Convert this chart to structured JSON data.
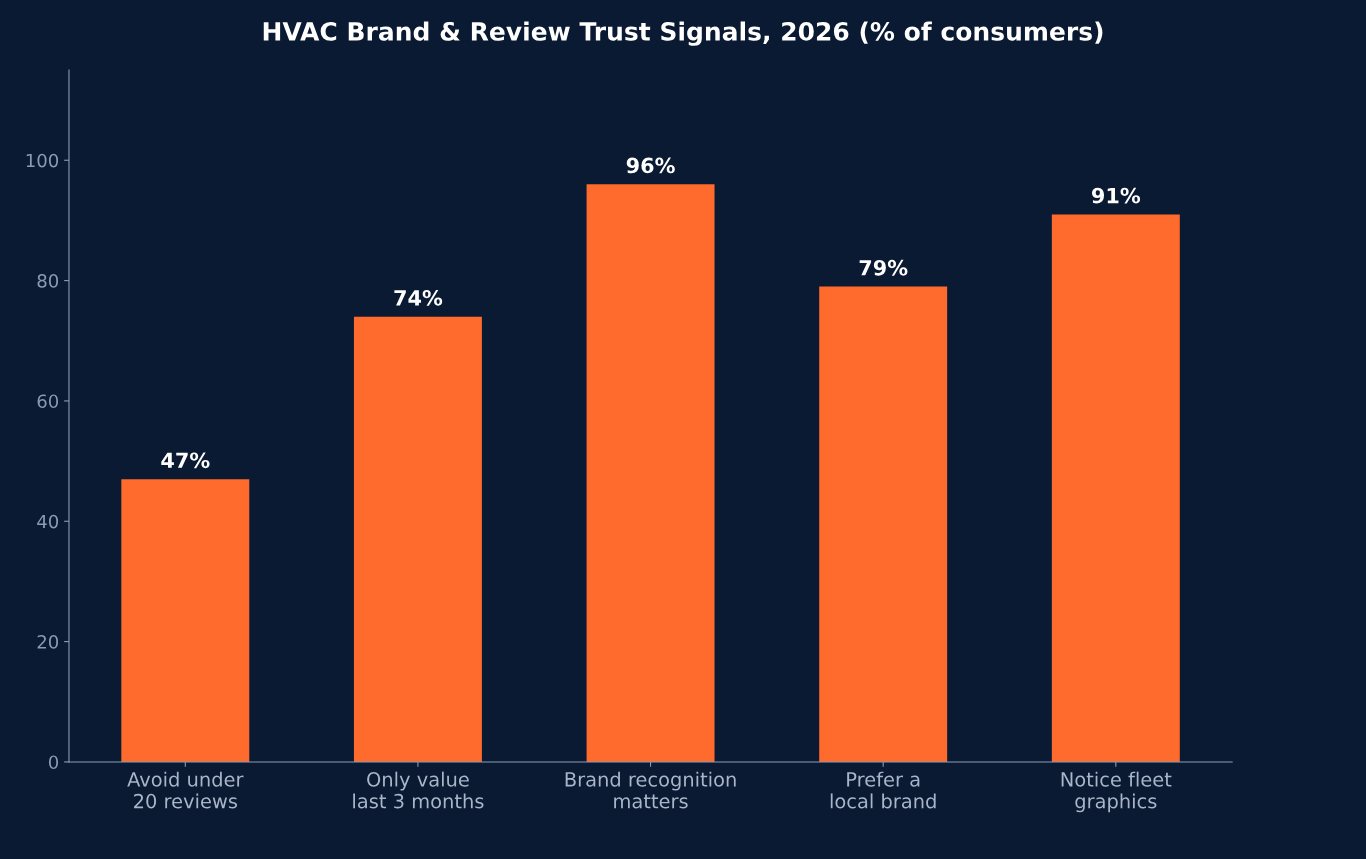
{
  "chart_data": {
    "type": "bar",
    "title": "HVAC Brand & Review Trust Signals, 2026 (% of consumers)",
    "categories": [
      "Avoid under\n20 reviews",
      "Only value\nlast 3 months",
      "Brand recognition\nmatters",
      "Prefer a\nlocal brand",
      "Notice fleet\ngraphics"
    ],
    "values": [
      47,
      74,
      96,
      79,
      91
    ],
    "value_labels": [
      "47%",
      "74%",
      "96%",
      "79%",
      "91%"
    ],
    "color": "#ff6b2c",
    "ylim": [
      0,
      115
    ],
    "yticks": [
      0,
      20,
      40,
      60,
      80,
      100
    ],
    "grid": false,
    "legend": false
  }
}
